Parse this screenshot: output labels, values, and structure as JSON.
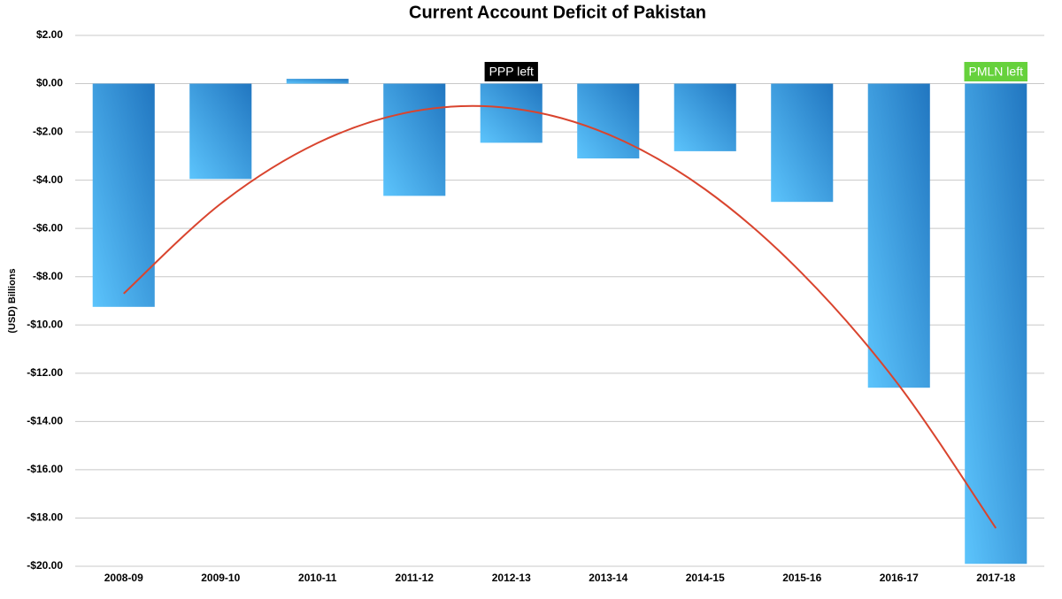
{
  "chart_data": {
    "type": "bar",
    "title": "Current Account Deficit of Pakistan",
    "y_label": "(USD) Billions",
    "categories": [
      "2008-09",
      "2009-10",
      "2010-11",
      "2011-12",
      "2012-13",
      "2013-14",
      "2014-15",
      "2015-16",
      "2016-17",
      "2017-18"
    ],
    "values": [
      -9.25,
      -3.95,
      0.2,
      -4.65,
      -2.45,
      -3.1,
      -2.8,
      -4.9,
      -12.6,
      -19.9
    ],
    "gradient": [
      "#2176c0",
      "#5cc4fc"
    ],
    "trend": {
      "color": "#d9442e",
      "values": [
        -8.7,
        -4.98,
        -2.46,
        -1.14,
        -1.02,
        -2.1,
        -4.38,
        -7.86,
        -12.5,
        -18.42
      ]
    },
    "ylim": [
      -20,
      2
    ],
    "yticks": [
      {
        "value": 2,
        "label": "$2.00"
      },
      {
        "value": 0,
        "label": "$0.00"
      },
      {
        "value": -2,
        "label": "-$2.00"
      },
      {
        "value": -4,
        "label": "-$4.00"
      },
      {
        "value": -6,
        "label": "-$6.00"
      },
      {
        "value": -8,
        "label": "-$8.00"
      },
      {
        "value": -10,
        "label": "-$10.00"
      },
      {
        "value": -12,
        "label": "-$12.00"
      },
      {
        "value": -14,
        "label": "-$14.00"
      },
      {
        "value": -16,
        "label": "-$16.00"
      },
      {
        "value": -18,
        "label": "-$18.00"
      },
      {
        "value": -20,
        "label": "-$20.00"
      }
    ],
    "grid": true,
    "annotations": [
      {
        "text": "PPP left",
        "category": "2012-13",
        "color": "#000000",
        "text_color": "#ffffff"
      },
      {
        "text": "PMLN left",
        "category": "2017-18",
        "color": "#66d13c",
        "text_color": "#ffffff"
      }
    ]
  }
}
